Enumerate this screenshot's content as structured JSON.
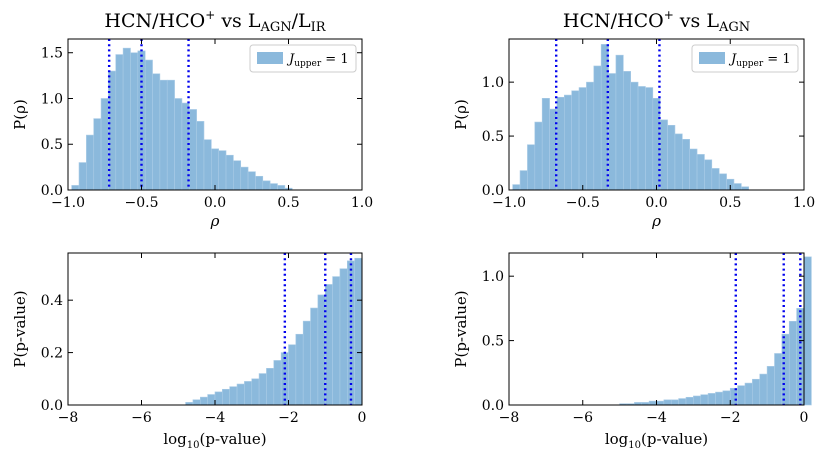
{
  "chart_data": [
    {
      "type": "histogram",
      "title_main": "HCN/HCO",
      "title_sup": "+",
      "title_vs": " vs L",
      "title_sub1": "AGN",
      "title_slash": "/L",
      "title_sub2": "IR",
      "xlabel": "ρ",
      "ylabel": "P(ρ)",
      "xlim": [
        -1.0,
        1.0
      ],
      "ylim": [
        0,
        1.65
      ],
      "xticks": [
        "−1.0",
        "−0.5",
        "0.0",
        "0.5",
        "1.0"
      ],
      "xtick_values": [
        -1.0,
        -0.5,
        0.0,
        0.5,
        1.0
      ],
      "yticks": [
        "0.0",
        "0.5",
        "1.0",
        "1.5"
      ],
      "ytick_values": [
        0.0,
        0.5,
        1.0,
        1.5
      ],
      "legend": {
        "symbol": "J",
        "sub": "upper",
        "eq": " = 1",
        "position": "upper right"
      },
      "bin_edges_start": -0.975,
      "bin_width": 0.05,
      "values": [
        0.05,
        0.3,
        0.6,
        0.78,
        1.0,
        1.3,
        1.48,
        1.55,
        1.5,
        1.52,
        1.42,
        1.27,
        1.2,
        1.2,
        1.0,
        0.95,
        0.88,
        0.75,
        0.55,
        0.45,
        0.43,
        0.38,
        0.32,
        0.25,
        0.2,
        0.15,
        0.1,
        0.07,
        0.05,
        0.02
      ],
      "vlines": [
        -0.72,
        -0.5,
        -0.18
      ],
      "bar_color": "#8bb9dc",
      "line_color": "#0000ee"
    },
    {
      "type": "histogram",
      "title_main": "HCN/HCO",
      "title_sup": "+",
      "title_vs": " vs L",
      "title_sub1": "AGN",
      "xlabel": "ρ",
      "ylabel": "P(ρ)",
      "xlim": [
        -1.0,
        1.0
      ],
      "ylim": [
        0,
        1.4
      ],
      "xticks": [
        "−1.0",
        "−0.5",
        "0.0",
        "0.5",
        "1.0"
      ],
      "xtick_values": [
        -1.0,
        -0.5,
        0.0,
        0.5,
        1.0
      ],
      "yticks": [
        "0.0",
        "0.5",
        "1.0"
      ],
      "ytick_values": [
        0.0,
        0.5,
        1.0
      ],
      "legend": {
        "symbol": "J",
        "sub": "upper",
        "eq": " = 1",
        "position": "upper right"
      },
      "bin_edges_start": -0.975,
      "bin_width": 0.05,
      "values": [
        0.05,
        0.18,
        0.42,
        0.63,
        0.85,
        0.75,
        0.86,
        0.88,
        0.92,
        0.95,
        1.0,
        1.15,
        1.35,
        1.08,
        1.25,
        1.1,
        1.0,
        0.96,
        0.95,
        0.85,
        0.65,
        0.6,
        0.52,
        0.47,
        0.38,
        0.33,
        0.28,
        0.2,
        0.15,
        0.1,
        0.06,
        0.03
      ],
      "vlines": [
        -0.68,
        -0.33,
        0.02
      ],
      "bar_color": "#8bb9dc",
      "line_color": "#0000ee"
    },
    {
      "type": "histogram",
      "xlabel_pre": "log",
      "xlabel_sub": "10",
      "xlabel_post": "(p-value)",
      "ylabel": "P(p-value)",
      "xlim": [
        -8,
        0
      ],
      "ylim": [
        0,
        0.58
      ],
      "xticks": [
        "−8",
        "−6",
        "−4",
        "−2",
        "0"
      ],
      "xtick_values": [
        -8,
        -6,
        -4,
        -2,
        0
      ],
      "yticks": [
        "0.0",
        "0.2",
        "0.4"
      ],
      "ytick_values": [
        0.0,
        0.2,
        0.4
      ],
      "bin_edges_start": -4.8,
      "bin_width": 0.2,
      "values": [
        0.01,
        0.02,
        0.03,
        0.04,
        0.05,
        0.06,
        0.07,
        0.08,
        0.09,
        0.1,
        0.12,
        0.14,
        0.17,
        0.2,
        0.23,
        0.27,
        0.32,
        0.37,
        0.42,
        0.46,
        0.49,
        0.52,
        0.55,
        0.56
      ],
      "vlines": [
        -2.1,
        -1.0,
        -0.3
      ],
      "bar_color": "#8bb9dc",
      "line_color": "#0000ee"
    },
    {
      "type": "histogram",
      "xlabel_pre": "log",
      "xlabel_sub": "10",
      "xlabel_post": "(p-value)",
      "ylabel": "P(p-value)",
      "xlim": [
        -8,
        0
      ],
      "ylim": [
        0,
        1.18
      ],
      "xticks": [
        "−8",
        "−6",
        "−4",
        "−2",
        "0"
      ],
      "xtick_values": [
        -8,
        -6,
        -4,
        -2,
        0
      ],
      "yticks": [
        "0.0",
        "0.5",
        "1.0"
      ],
      "ytick_values": [
        0.0,
        0.5,
        1.0
      ],
      "bin_edges_start": -5.0,
      "bin_width": 0.2,
      "values": [
        0.01,
        0.01,
        0.02,
        0.02,
        0.03,
        0.03,
        0.04,
        0.04,
        0.05,
        0.06,
        0.07,
        0.08,
        0.09,
        0.1,
        0.11,
        0.13,
        0.15,
        0.17,
        0.2,
        0.24,
        0.3,
        0.4,
        0.55,
        0.65,
        0.75,
        1.15
      ],
      "vlines": [
        -1.85,
        -0.55,
        -0.1
      ],
      "bar_color": "#8bb9dc",
      "line_color": "#0000ee"
    }
  ]
}
